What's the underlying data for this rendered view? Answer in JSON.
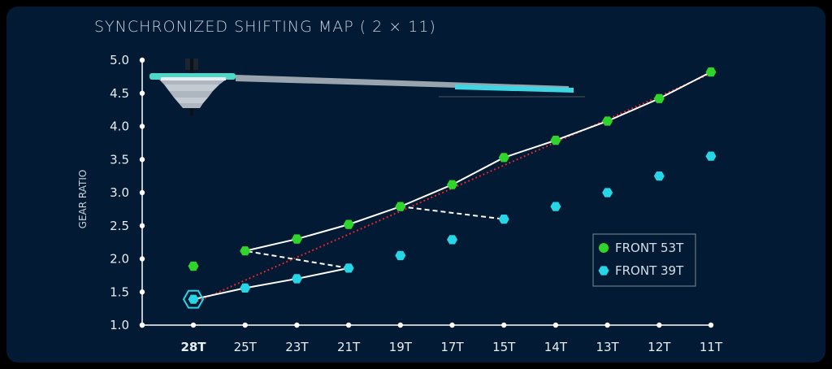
{
  "chart_data": {
    "type": "line",
    "title": "SYNCHRONIZED SHIFTING MAP ( 2 × 11)",
    "ylabel": "GEAR RATIO",
    "xlabel": "",
    "categories": [
      "28T",
      "25T",
      "23T",
      "21T",
      "19T",
      "17T",
      "15T",
      "14T",
      "13T",
      "12T",
      "11T"
    ],
    "highlight_category": "28T",
    "yticks": [
      "5.0",
      "4.5",
      "4.0",
      "3.5",
      "3.0",
      "2.5",
      "2.0",
      "1.5",
      "1.0"
    ],
    "ylim": [
      1.0,
      5.0
    ],
    "series": [
      {
        "name": "FRONT 53T",
        "color": "#2fd52a",
        "values": [
          1.89,
          2.12,
          2.3,
          2.52,
          2.79,
          3.12,
          3.53,
          3.79,
          4.08,
          4.42,
          4.82
        ]
      },
      {
        "name": "FRONT 39T",
        "color": "#27d6e6",
        "values": [
          1.39,
          1.56,
          1.7,
          1.86,
          2.05,
          2.29,
          2.6,
          2.79,
          3.0,
          3.25,
          3.55
        ]
      }
    ],
    "shift_path": {
      "color": "#ffffff",
      "points": [
        [
          "39T",
          0
        ],
        [
          "39T",
          1
        ],
        [
          "39T",
          2
        ],
        [
          "39T",
          3
        ],
        [
          "53T",
          1
        ],
        [
          "53T",
          2
        ],
        [
          "53T",
          3
        ],
        [
          "53T",
          4
        ],
        [
          "39T",
          6
        ],
        [
          "53T",
          4
        ],
        [
          "53T",
          5
        ],
        [
          "53T",
          6
        ],
        [
          "53T",
          7
        ],
        [
          "53T",
          8
        ],
        [
          "53T",
          9
        ],
        [
          "53T",
          10
        ]
      ],
      "solid_segments": [
        [
          0,
          1
        ],
        [
          1,
          2
        ],
        [
          2,
          3
        ],
        [
          4,
          5
        ],
        [
          5,
          6
        ],
        [
          6,
          7
        ],
        [
          9,
          10
        ],
        [
          10,
          11
        ],
        [
          11,
          12
        ],
        [
          12,
          13
        ],
        [
          13,
          14
        ],
        [
          14,
          15
        ]
      ],
      "dashed_segments": [
        [
          3,
          4
        ],
        [
          7,
          8
        ]
      ]
    },
    "trend": {
      "color": "#e0262b",
      "from": 1.33,
      "to": 4.8
    },
    "legend_position": "right"
  }
}
